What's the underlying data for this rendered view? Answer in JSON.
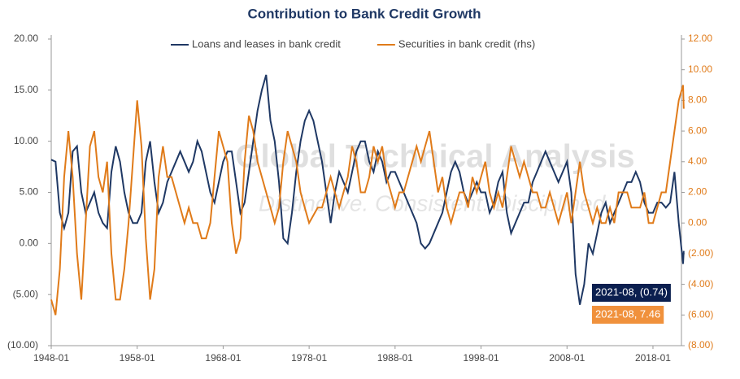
{
  "chart_data": {
    "type": "line",
    "title": "Contribution to Bank Credit Growth",
    "watermark": [
      "Global Technical Analysis",
      "Distinctive. Consistent. Disciplined."
    ],
    "x": [
      "1948-01",
      "1948-07",
      "1949-01",
      "1949-07",
      "1950-01",
      "1950-07",
      "1951-01",
      "1951-07",
      "1952-01",
      "1952-07",
      "1953-01",
      "1953-07",
      "1954-01",
      "1954-07",
      "1955-01",
      "1955-07",
      "1956-01",
      "1956-07",
      "1957-01",
      "1957-07",
      "1958-01",
      "1958-07",
      "1959-01",
      "1959-07",
      "1960-01",
      "1960-07",
      "1961-01",
      "1961-07",
      "1962-01",
      "1962-07",
      "1963-01",
      "1963-07",
      "1964-01",
      "1964-07",
      "1965-01",
      "1965-07",
      "1966-01",
      "1966-07",
      "1967-01",
      "1967-07",
      "1968-01",
      "1968-07",
      "1969-01",
      "1969-07",
      "1970-01",
      "1970-07",
      "1971-01",
      "1971-07",
      "1972-01",
      "1972-07",
      "1973-01",
      "1973-07",
      "1974-01",
      "1974-07",
      "1975-01",
      "1975-07",
      "1976-01",
      "1976-07",
      "1977-01",
      "1977-07",
      "1978-01",
      "1978-07",
      "1979-01",
      "1979-07",
      "1980-01",
      "1980-07",
      "1981-01",
      "1981-07",
      "1982-01",
      "1982-07",
      "1983-01",
      "1983-07",
      "1984-01",
      "1984-07",
      "1985-01",
      "1985-07",
      "1986-01",
      "1986-07",
      "1987-01",
      "1987-07",
      "1988-01",
      "1988-07",
      "1989-01",
      "1989-07",
      "1990-01",
      "1990-07",
      "1991-01",
      "1991-07",
      "1992-01",
      "1992-07",
      "1993-01",
      "1993-07",
      "1994-01",
      "1994-07",
      "1995-01",
      "1995-07",
      "1996-01",
      "1996-07",
      "1997-01",
      "1997-07",
      "1998-01",
      "1998-07",
      "1999-01",
      "1999-07",
      "2000-01",
      "2000-07",
      "2001-01",
      "2001-07",
      "2002-01",
      "2002-07",
      "2003-01",
      "2003-07",
      "2004-01",
      "2004-07",
      "2005-01",
      "2005-07",
      "2006-01",
      "2006-07",
      "2007-01",
      "2007-07",
      "2008-01",
      "2008-07",
      "2009-01",
      "2009-07",
      "2010-01",
      "2010-07",
      "2011-01",
      "2011-07",
      "2012-01",
      "2012-07",
      "2013-01",
      "2013-07",
      "2014-01",
      "2014-07",
      "2015-01",
      "2015-07",
      "2016-01",
      "2016-07",
      "2017-01",
      "2017-07",
      "2018-01",
      "2018-07",
      "2019-01",
      "2019-07",
      "2020-01",
      "2020-07",
      "2021-01",
      "2021-07",
      "2021-08"
    ],
    "series": [
      {
        "name": "Loans and leases in bank credit",
        "color": "#1f3864",
        "axis": "y",
        "values": [
          8.2,
          8,
          3,
          1.5,
          3,
          9,
          9.5,
          5,
          3,
          4,
          5,
          3,
          2,
          1.5,
          7,
          9.5,
          8,
          5,
          3,
          2,
          2,
          3,
          8,
          10,
          6,
          3,
          4,
          6,
          7,
          8,
          9,
          8,
          7,
          8,
          10,
          9,
          7,
          5,
          4,
          6,
          8,
          9,
          9,
          6,
          3,
          4,
          7,
          10,
          13,
          15,
          16.5,
          12,
          10,
          6,
          0.5,
          0,
          3,
          7,
          10,
          12,
          13,
          12,
          10,
          8,
          5,
          2,
          5,
          7,
          6,
          5,
          7,
          9,
          10,
          10,
          8,
          7,
          9,
          8,
          6,
          7,
          7,
          6,
          5,
          4,
          3,
          2,
          0,
          -0.5,
          0,
          1,
          2,
          3,
          5,
          7,
          8,
          7,
          5,
          4,
          5,
          6,
          5,
          5,
          3,
          4,
          6,
          7,
          3,
          1,
          2,
          3,
          4,
          4,
          6,
          7,
          8,
          9,
          8,
          7,
          6,
          7,
          8,
          5,
          -3,
          -6,
          -4,
          0,
          -1,
          1,
          3,
          4,
          2,
          3,
          4,
          5,
          6,
          6,
          7,
          6,
          4,
          3,
          3,
          4,
          4,
          3.5,
          4,
          7,
          2,
          -2,
          -0.74
        ]
      },
      {
        "name": "Securities in bank credit (rhs)",
        "color": "#e07b1a",
        "axis": "y2",
        "values": [
          -5,
          -6,
          -3,
          3,
          6,
          3,
          -2,
          -5,
          0,
          5,
          6,
          3,
          2,
          4,
          -2,
          -5,
          -5,
          -3,
          0,
          4,
          8,
          5,
          -1,
          -5,
          -3,
          3,
          5,
          3,
          3,
          2,
          1,
          0,
          1,
          0,
          0,
          -1,
          -1,
          0,
          3,
          6,
          5,
          4,
          0,
          -2,
          -1,
          4,
          7,
          6,
          4,
          3,
          2,
          1,
          0,
          1,
          4,
          6,
          5,
          4,
          2,
          1,
          0,
          0.5,
          1,
          1,
          2,
          3,
          2,
          1,
          2,
          3,
          5,
          4,
          2,
          2,
          3,
          5,
          4,
          5,
          3,
          2,
          1,
          2,
          2,
          3,
          4,
          5,
          4,
          5,
          6,
          4,
          2,
          3,
          1,
          0,
          1,
          2,
          2,
          1,
          3,
          2,
          3,
          4,
          2,
          1,
          2,
          1,
          3,
          5,
          4,
          3,
          4,
          3,
          2,
          2,
          1,
          1,
          2,
          1,
          0,
          1,
          2,
          0,
          2,
          4,
          2,
          1,
          0,
          1,
          0,
          0,
          1,
          0,
          2,
          2,
          2,
          1,
          1,
          1,
          2,
          0,
          0,
          1,
          2,
          2,
          4,
          6,
          8,
          9,
          7.46
        ]
      }
    ],
    "ylim": [
      -10,
      20
    ],
    "yticks": [
      {
        "value": -10,
        "label": "(10.00)"
      },
      {
        "value": -5,
        "label": "(5.00)"
      },
      {
        "value": 0,
        "label": "0.00"
      },
      {
        "value": 5,
        "label": "5.00"
      },
      {
        "value": 10,
        "label": "10.00"
      },
      {
        "value": 15,
        "label": "15.00"
      },
      {
        "value": 20,
        "label": "20.00"
      }
    ],
    "y2lim": [
      -8,
      12
    ],
    "y2ticks": [
      {
        "value": -8,
        "label": "(8.00)"
      },
      {
        "value": -6,
        "label": "(6.00)"
      },
      {
        "value": -4,
        "label": "(4.00)"
      },
      {
        "value": -2,
        "label": "(2.00)"
      },
      {
        "value": 0,
        "label": "0.00"
      },
      {
        "value": 2,
        "label": "2.00"
      },
      {
        "value": 4,
        "label": "4.00"
      },
      {
        "value": 6,
        "label": "6.00"
      },
      {
        "value": 8,
        "label": "8.00"
      },
      {
        "value": 10,
        "label": "10.00"
      },
      {
        "value": 12,
        "label": "12.00"
      }
    ],
    "xticks": [
      "1948-01",
      "1958-01",
      "1968-01",
      "1978-01",
      "1988-01",
      "1998-01",
      "2008-01",
      "2018-01"
    ],
    "annotations": [
      {
        "text": "2021-08, (0.74)",
        "color": "#0b1f4f"
      },
      {
        "text": "2021-08, 7.46",
        "color": "#f0913c"
      }
    ],
    "legend": "top"
  }
}
